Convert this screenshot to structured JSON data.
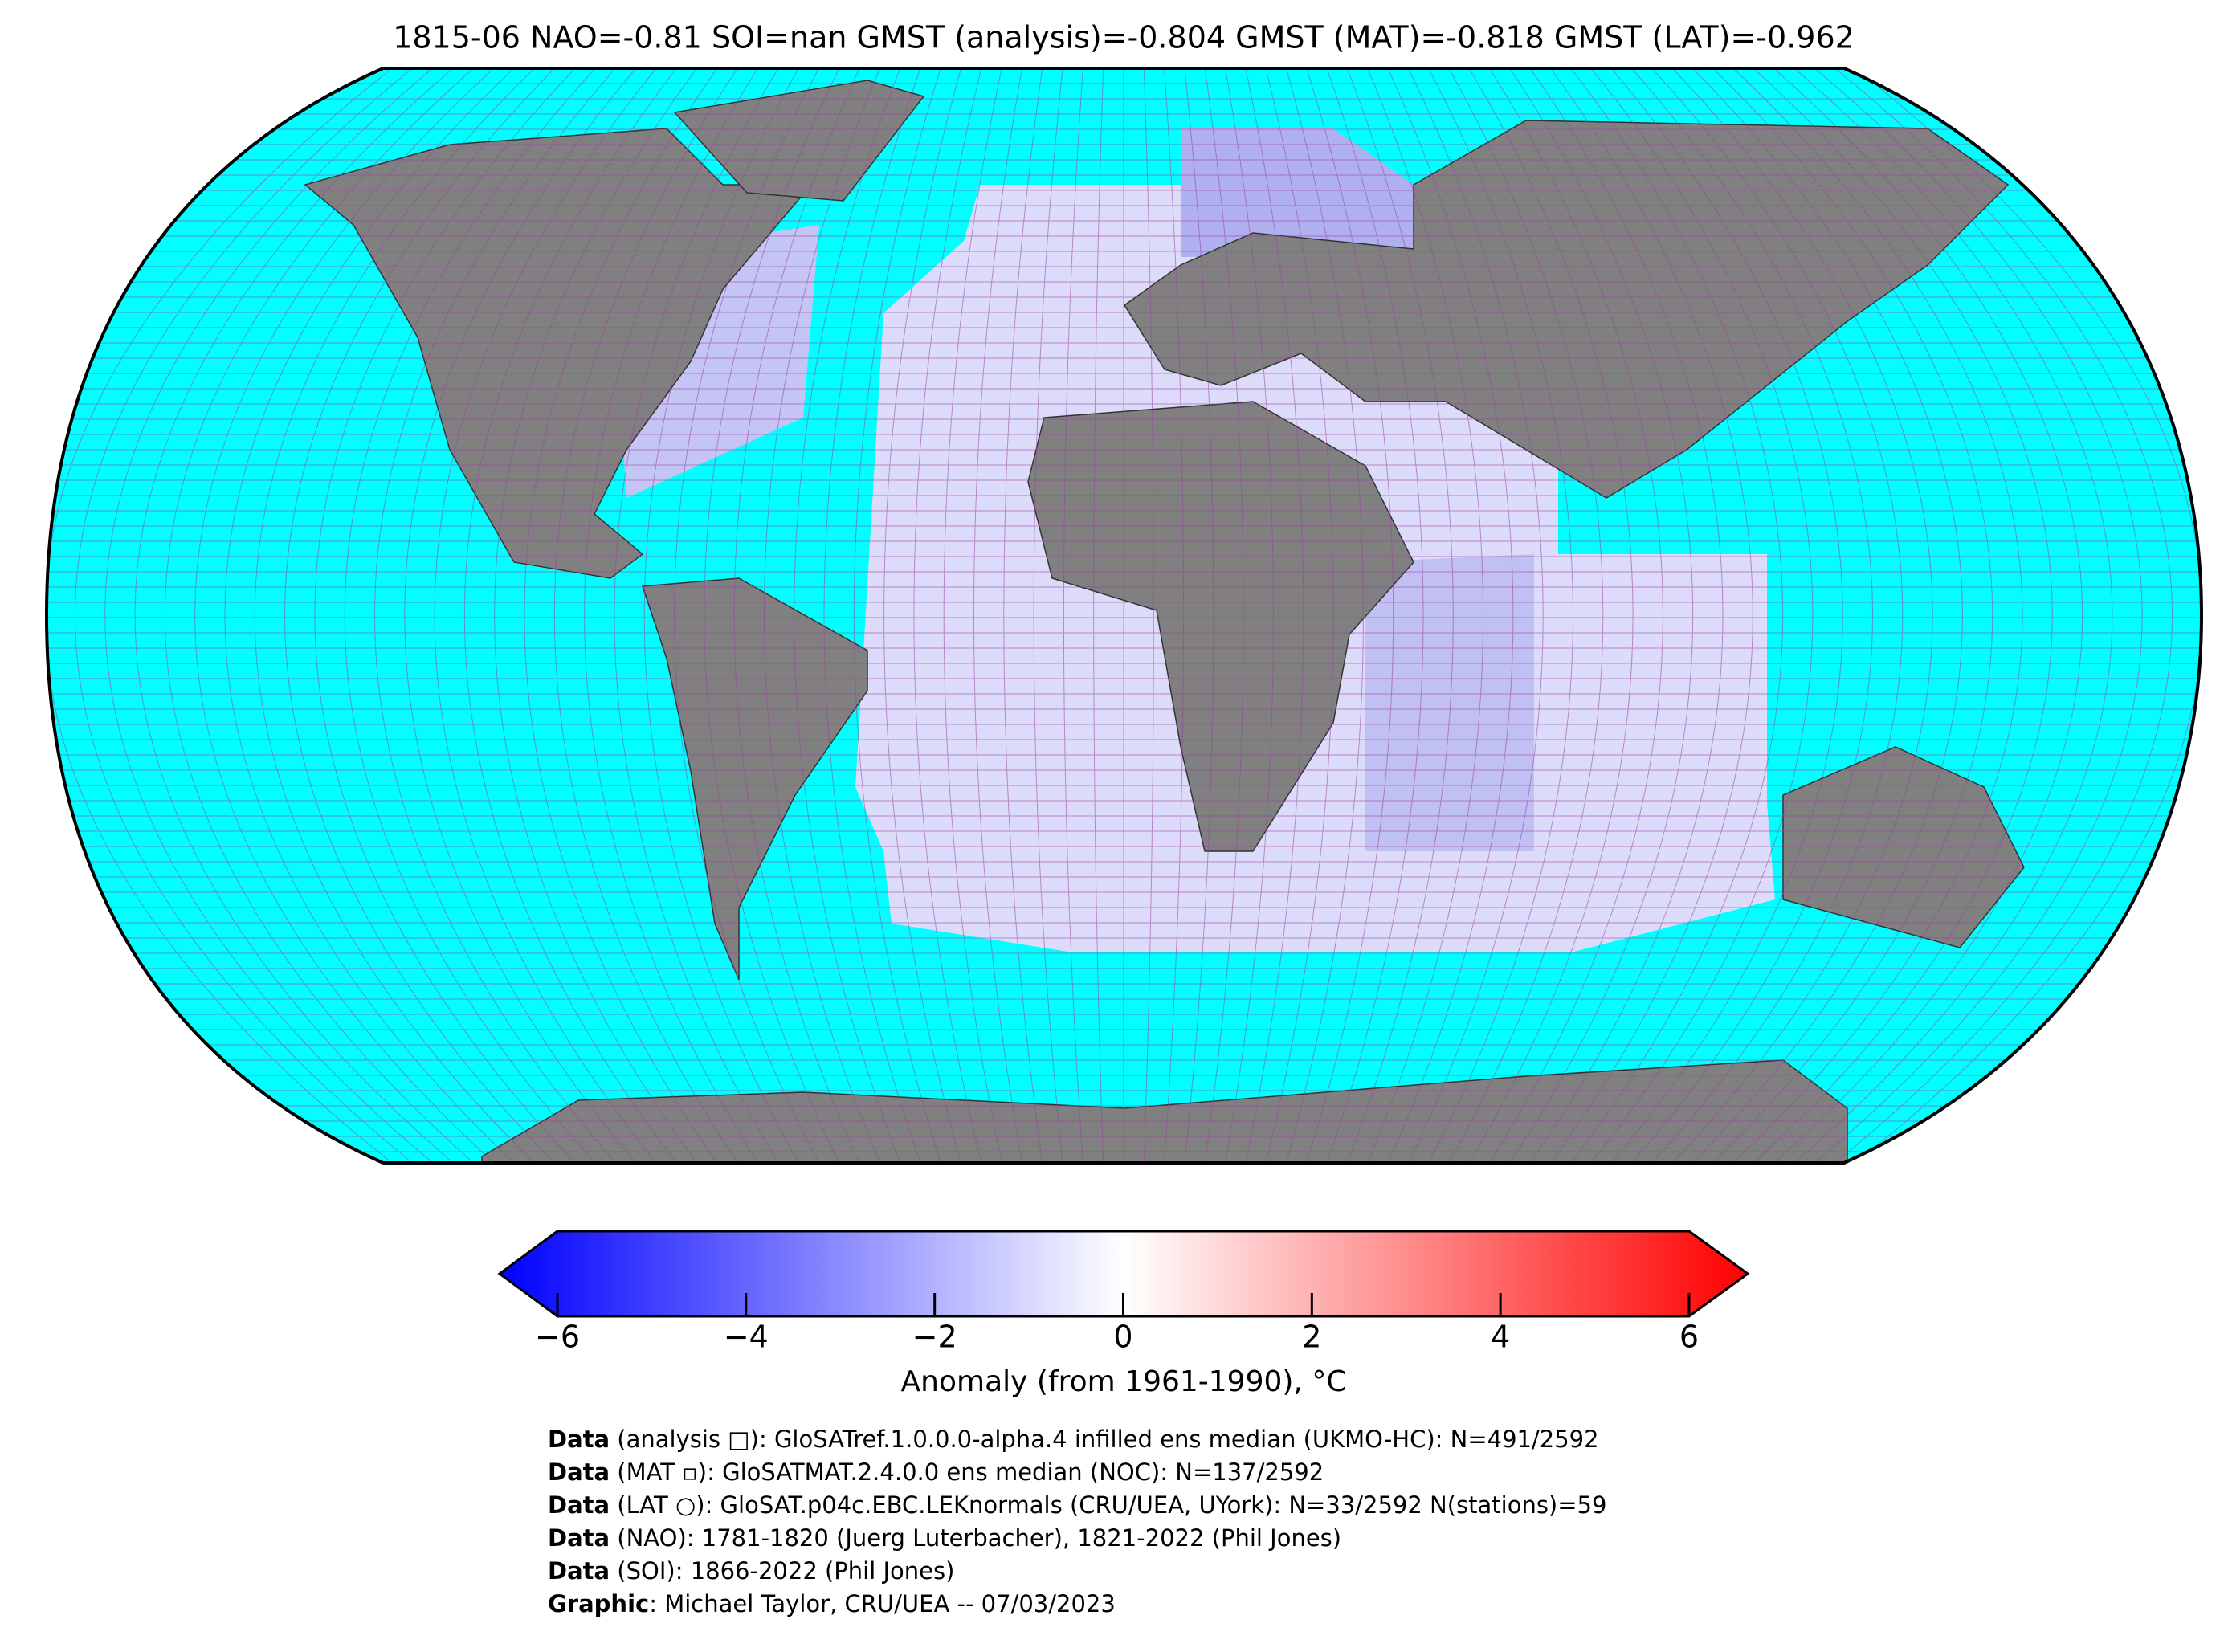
{
  "title": "1815-06 NAO=-0.81 SOI=nan GMST (analysis)=-0.804 GMST (MAT)=-0.818 GMST (LAT)=-0.962",
  "colorbar": {
    "label": "Anomaly (from 1961-1990), °C",
    "xlim": [
      -6,
      6
    ],
    "xticks": [
      {
        "value": -6,
        "label": "−6"
      },
      {
        "value": -4,
        "label": "−4"
      },
      {
        "value": -2,
        "label": "−2"
      },
      0,
      2,
      4,
      6
    ]
  },
  "footer": [
    {
      "bold": "Data",
      "text": " (analysis □): GloSATref.1.0.0.0-alpha.4 infilled ens median (UKMO-HC): N=491/2592"
    },
    {
      "bold": "Data",
      "text": " (MAT ▫): GloSATMAT.2.4.0.0 ens median (NOC): N=137/2592"
    },
    {
      "bold": "Data",
      "text": " (LAT ○): GloSAT.p04c.EBC.LEKnormals (CRU/UEA, UYork): N=33/2592 N(stations)=59"
    },
    {
      "bold": "Data",
      "text": " (NAO): 1781-1820 (Juerg Luterbacher), 1821-2022 (Phil Jones)"
    },
    {
      "bold": "Data",
      "text": " (SOI): 1866-2022 (Phil Jones)"
    },
    {
      "bold": "Graphic",
      "text": ": Michael Taylor, CRU/UEA -- 07/03/2023"
    }
  ]
}
